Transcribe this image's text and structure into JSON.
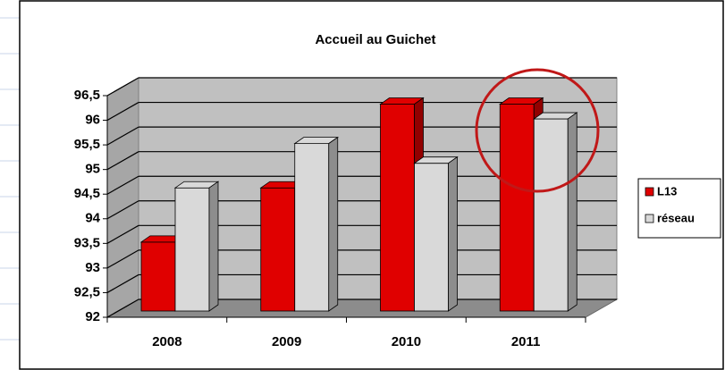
{
  "chart_data": {
    "type": "bar3d",
    "title": "Accueil au Guichet",
    "categories": [
      "2008",
      "2009",
      "2010",
      "2011"
    ],
    "series": [
      {
        "name": "L13",
        "color": "#e00000",
        "values": [
          93.4,
          94.5,
          96.2,
          96.2
        ]
      },
      {
        "name": "réseau",
        "color": "#d9d9d9",
        "values": [
          94.5,
          95.4,
          95.0,
          95.9
        ]
      }
    ],
    "ylim": [
      92,
      96.5
    ],
    "yticks": [
      92,
      {
        "value": 92.5,
        "label": "92,5"
      },
      93,
      {
        "value": 93.5,
        "label": "93,5"
      },
      94,
      {
        "value": 94.5,
        "label": "94,5"
      },
      95,
      {
        "value": 95.5,
        "label": "95,5"
      },
      96,
      {
        "value": 96.5,
        "label": "96,5"
      }
    ],
    "grid": true,
    "legend": "right"
  }
}
